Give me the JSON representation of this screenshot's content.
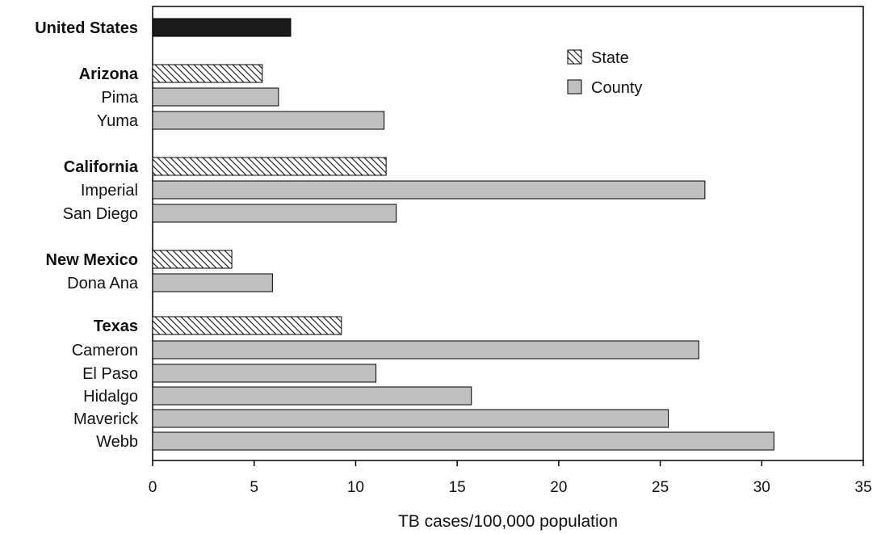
{
  "chart_data": {
    "type": "bar",
    "orientation": "horizontal",
    "xlabel": "TB cases/100,000 population",
    "xlim": [
      0,
      35
    ],
    "xticks": [
      0,
      5,
      10,
      15,
      20,
      25,
      30,
      35
    ],
    "grid": false,
    "legend": {
      "placement": "top-right",
      "entries": [
        {
          "label": "State",
          "pattern": "hatched"
        },
        {
          "label": "County",
          "color": "#c0c0c0"
        }
      ]
    },
    "colors": {
      "national": "#1a1a1a",
      "county": "#c0c0c0",
      "state_hatch": "#222222",
      "outline": "#000000"
    },
    "rows": [
      {
        "label": "United States",
        "value": 6.8,
        "kind": "national",
        "bold": true
      },
      {
        "label": "Arizona",
        "value": 5.4,
        "kind": "state",
        "bold": true
      },
      {
        "label": "Pima",
        "value": 6.2,
        "kind": "county",
        "bold": false
      },
      {
        "label": "Yuma",
        "value": 11.4,
        "kind": "county",
        "bold": false
      },
      {
        "label": "California",
        "value": 11.5,
        "kind": "state",
        "bold": true
      },
      {
        "label": "Imperial",
        "value": 27.2,
        "kind": "county",
        "bold": false
      },
      {
        "label": "San Diego",
        "value": 12.0,
        "kind": "county",
        "bold": false
      },
      {
        "label": "New Mexico",
        "value": 3.9,
        "kind": "state",
        "bold": true
      },
      {
        "label": "Dona Ana",
        "value": 5.9,
        "kind": "county",
        "bold": false
      },
      {
        "label": "Texas",
        "value": 9.3,
        "kind": "state",
        "bold": true
      },
      {
        "label": "Cameron",
        "value": 26.9,
        "kind": "county",
        "bold": false
      },
      {
        "label": "El Paso",
        "value": 11.0,
        "kind": "county",
        "bold": false
      },
      {
        "label": "Hidalgo",
        "value": 15.7,
        "kind": "county",
        "bold": false
      },
      {
        "label": "Maverick",
        "value": 25.4,
        "kind": "county",
        "bold": false
      },
      {
        "label": "Webb",
        "value": 30.6,
        "kind": "county",
        "bold": false
      }
    ]
  }
}
